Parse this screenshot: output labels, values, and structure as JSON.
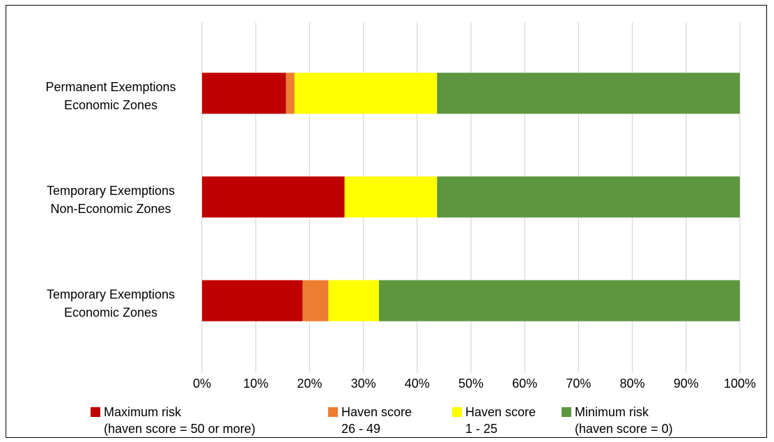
{
  "chart_data": {
    "type": "bar",
    "orientation": "horizontal",
    "stacked": "percent",
    "categories": [
      [
        "Permanent Exemptions",
        "Economic Zones"
      ],
      [
        "Temporary Exemptions",
        "Non-Economic Zones"
      ],
      [
        "Temporary Exemptions",
        "Economic Zones"
      ]
    ],
    "xlim": [
      0,
      100
    ],
    "x_ticks": [
      "0%",
      "10%",
      "20%",
      "30%",
      "40%",
      "50%",
      "60%",
      "70%",
      "80%",
      "90%",
      "100%"
    ],
    "grid": "vertical",
    "legend_position": "bottom",
    "series": [
      {
        "name": [
          "Maximum risk",
          "(haven score = 50 or more)"
        ],
        "color": "#c00000",
        "values": [
          15.6,
          26.5,
          18.7
        ]
      },
      {
        "name": [
          "Haven score",
          "26 - 49"
        ],
        "color": "#ed7d31",
        "values": [
          1.6,
          0,
          4.8
        ]
      },
      {
        "name": [
          "Haven score",
          "1 - 25"
        ],
        "color": "#ffff00",
        "values": [
          26.5,
          17.2,
          9.4
        ]
      },
      {
        "name": [
          "Minimum risk",
          "(haven score = 0)"
        ],
        "color": "#5e9640",
        "values": [
          56.3,
          56.3,
          67.1
        ]
      }
    ]
  }
}
